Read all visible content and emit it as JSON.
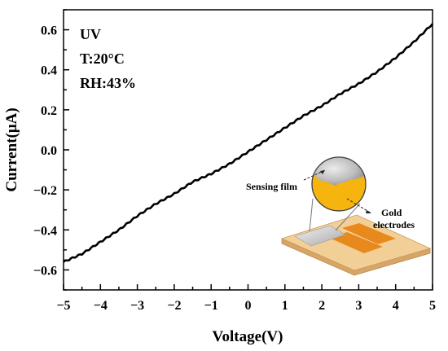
{
  "chart_data": {
    "type": "line",
    "xlabel": "Voltage(V)",
    "ylabel": "Current(μA)",
    "xlim": [
      -5,
      5
    ],
    "ylim": [
      -0.7,
      0.7
    ],
    "x_ticks": [
      -5,
      -4,
      -3,
      -2,
      -1,
      0,
      1,
      2,
      3,
      4,
      5
    ],
    "x_tick_labels": [
      "−5",
      "−4",
      "−3",
      "−2",
      "−1",
      "0",
      "1",
      "2",
      "3",
      "4",
      "5"
    ],
    "y_ticks": [
      -0.6,
      -0.4,
      -0.2,
      0.0,
      0.2,
      0.4,
      0.6
    ],
    "y_tick_labels": [
      "−0.6",
      "−0.4",
      "−0.2",
      "0.0",
      "0.2",
      "0.4",
      "0.6"
    ],
    "grid": false,
    "series": [
      {
        "color": "#000000",
        "x": [
          -5,
          -4.5,
          -4,
          -3.5,
          -3,
          -2.5,
          -2,
          -1.5,
          -1,
          -0.5,
          0,
          0.5,
          1,
          1.5,
          2,
          2.5,
          3,
          3.5,
          4,
          4.5,
          5
        ],
        "y": [
          -0.56,
          -0.52,
          -0.46,
          -0.4,
          -0.33,
          -0.27,
          -0.22,
          -0.16,
          -0.12,
          -0.07,
          -0.01,
          0.05,
          0.11,
          0.17,
          0.22,
          0.28,
          0.33,
          0.39,
          0.46,
          0.54,
          0.63
        ]
      }
    ],
    "annotations": [
      "UV",
      "T:20°C",
      "RH:43%"
    ],
    "inset": {
      "labels": [
        "Sensing film",
        "Gold",
        "electrodes"
      ],
      "colors": {
        "substrate": "#f3cf98",
        "electrode": "#e8891e",
        "film": "#d2d2d2",
        "gold": "#f6b40f"
      }
    }
  }
}
